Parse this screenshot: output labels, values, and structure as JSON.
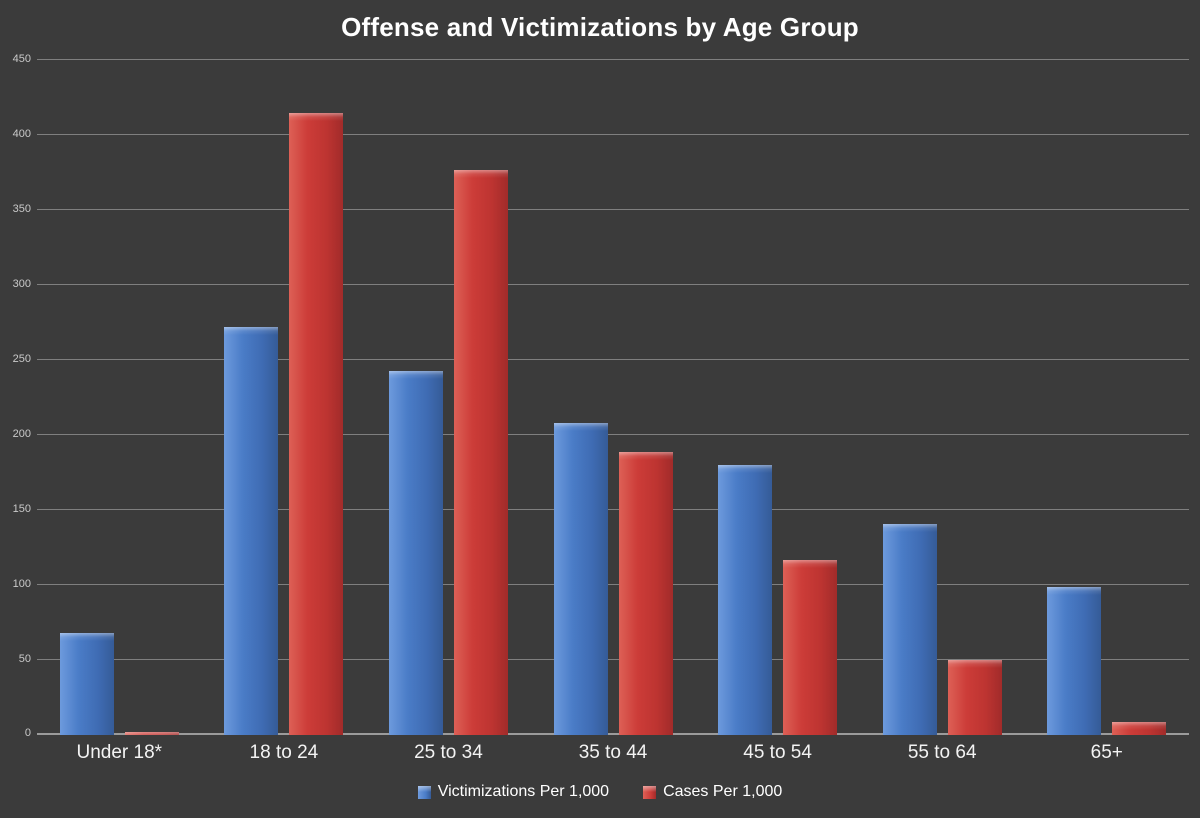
{
  "title": "Offense and Victimizations by Age Group",
  "colors": {
    "background": "#3b3b3b",
    "series_blue": "#4a7cc7",
    "series_red": "#cc3c38",
    "gridline": "rgba(255,255,255,0.35)",
    "axis_text": "#c9c9c9",
    "label_text": "#f3f3f3",
    "title_text": "#ffffff"
  },
  "chart_data": {
    "type": "bar",
    "title": "Offense and Victimizations by Age Group",
    "categories": [
      "Under 18*",
      "18 to 24",
      "25 to 34",
      "35 to 44",
      "45 to 54",
      "55 to 64",
      "65+"
    ],
    "series": [
      {
        "name": "Victimizations Per 1,000",
        "color": "#4a7cc7",
        "values": [
          68,
          272,
          243,
          208,
          180,
          141,
          99
        ]
      },
      {
        "name": "Cases Per 1,000",
        "color": "#cc3c38",
        "values": [
          2,
          415,
          377,
          189,
          117,
          50,
          9
        ]
      }
    ],
    "xlabel": "",
    "ylabel": "",
    "ylim": [
      0,
      450
    ],
    "ytick_step": 50,
    "yticks": [
      0,
      50,
      100,
      150,
      200,
      250,
      300,
      350,
      400,
      450
    ],
    "grid": true,
    "legend_position": "bottom"
  }
}
